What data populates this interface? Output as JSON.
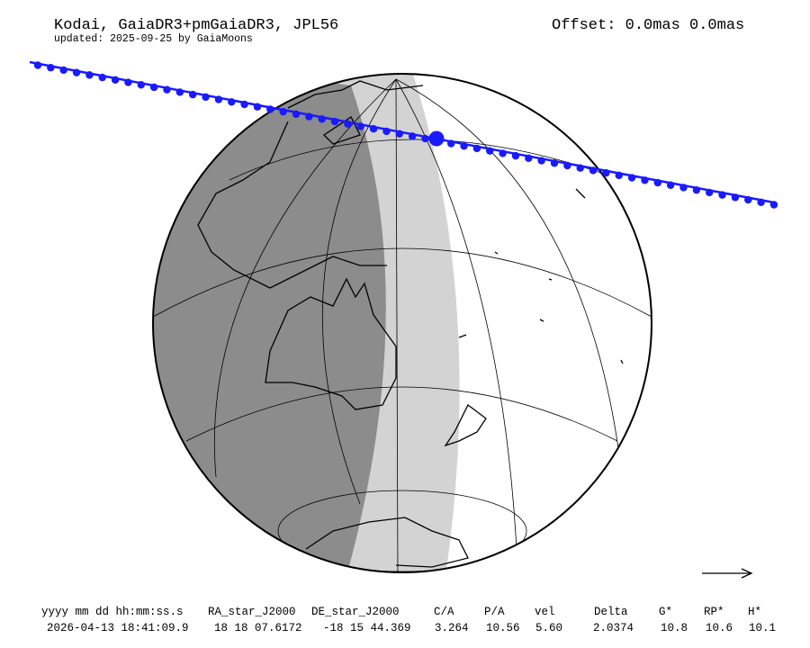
{
  "header": {
    "title": "Kodai, GaiaDR3+pmGaiaDR3, JPL56",
    "subtitle": "updated: 2025-09-25 by GaiaMoons",
    "offset": "Offset: 0.0mas 0.0mas"
  },
  "table": {
    "columns": [
      "yyyy mm dd hh:mm:ss.s",
      "RA_star_J2000",
      "DE_star_J2000",
      "C/A",
      "P/A",
      "vel",
      "Delta",
      "G*",
      "RP*",
      "H*"
    ],
    "row": [
      "2026-04-13 18:41:09.9",
      "18 18 07.6172",
      "-18 15 44.369",
      "3.264",
      "10.56",
      "5.60",
      "2.0374",
      "10.8",
      "10.6",
      "10.1"
    ]
  },
  "colors": {
    "track": "#1a1aff",
    "night": "#8c8c8c",
    "twilight": "#d3d3d3",
    "day": "#ffffff"
  },
  "icons": {
    "direction": "arrow-right-icon"
  }
}
